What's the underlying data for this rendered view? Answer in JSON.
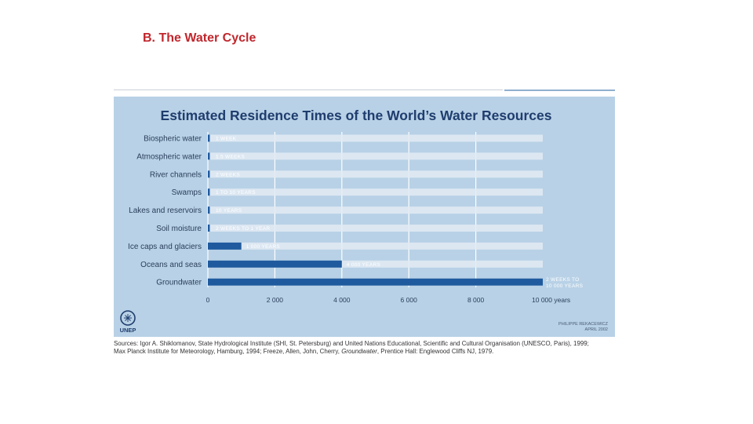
{
  "slide": {
    "title": "B. The Water Cycle"
  },
  "colors": {
    "title_red": "#c0272d",
    "panel_bg": "#b8d1e6",
    "bar": "#1f5a9e",
    "track": "#e2ebf3",
    "chart_title": "#1f3d6e"
  },
  "logo": {
    "label": "UNEP",
    "icon": "un-emblem-icon"
  },
  "credit": {
    "line1": "PHILIPPE REKACEWICZ",
    "line2": "APRIL 2002"
  },
  "source": {
    "line1": "Sources: Igor A. Shiklomanov, State Hydrological Institute (SHI, St. Petersburg) and United Nations Educational, Scientific and Cultural Organisation (UNESCO, Paris), 1999;",
    "line2_pre": "Max Planck Institute for Meteorology, Hamburg, 1994; Freeze, Allen, John, Cherry,",
    "line2_italic": "Groundwater",
    "line2_post": ", Prentice Hall: Englewood Cliffs NJ, 1979."
  },
  "chart_data": {
    "type": "bar",
    "orientation": "horizontal",
    "title": "Estimated Residence Times of the World’s Water Resources",
    "xlabel": "years",
    "xlim": [
      0,
      10000
    ],
    "xticks": [
      0,
      2000,
      4000,
      6000,
      8000,
      10000
    ],
    "xtick_labels": [
      "0",
      "2 000",
      "4 000",
      "6 000",
      "8 000",
      "10 000 years"
    ],
    "categories": [
      "Biospheric water",
      "Atmospheric water",
      "River channels",
      "Swamps",
      "Lakes and reservoirs",
      "Soil moisture",
      "Ice caps and glaciers",
      "Oceans and seas",
      "Groundwater"
    ],
    "values": [
      0.02,
      0.03,
      0.04,
      5,
      10,
      0.5,
      1000,
      4000,
      10000
    ],
    "value_labels": [
      [
        "1 WEEK"
      ],
      [
        "1.5 WEEKS"
      ],
      [
        "2 WEEKS"
      ],
      [
        "1 TO 10 YEARS"
      ],
      [
        "10 YEARS"
      ],
      [
        "2 WEEKS TO 1 YEAR"
      ],
      [
        "1 000 YEARS"
      ],
      [
        "4 000 YEARS"
      ],
      [
        "2 WEEKS TO",
        "10 000 YEARS"
      ]
    ],
    "grid": true
  }
}
